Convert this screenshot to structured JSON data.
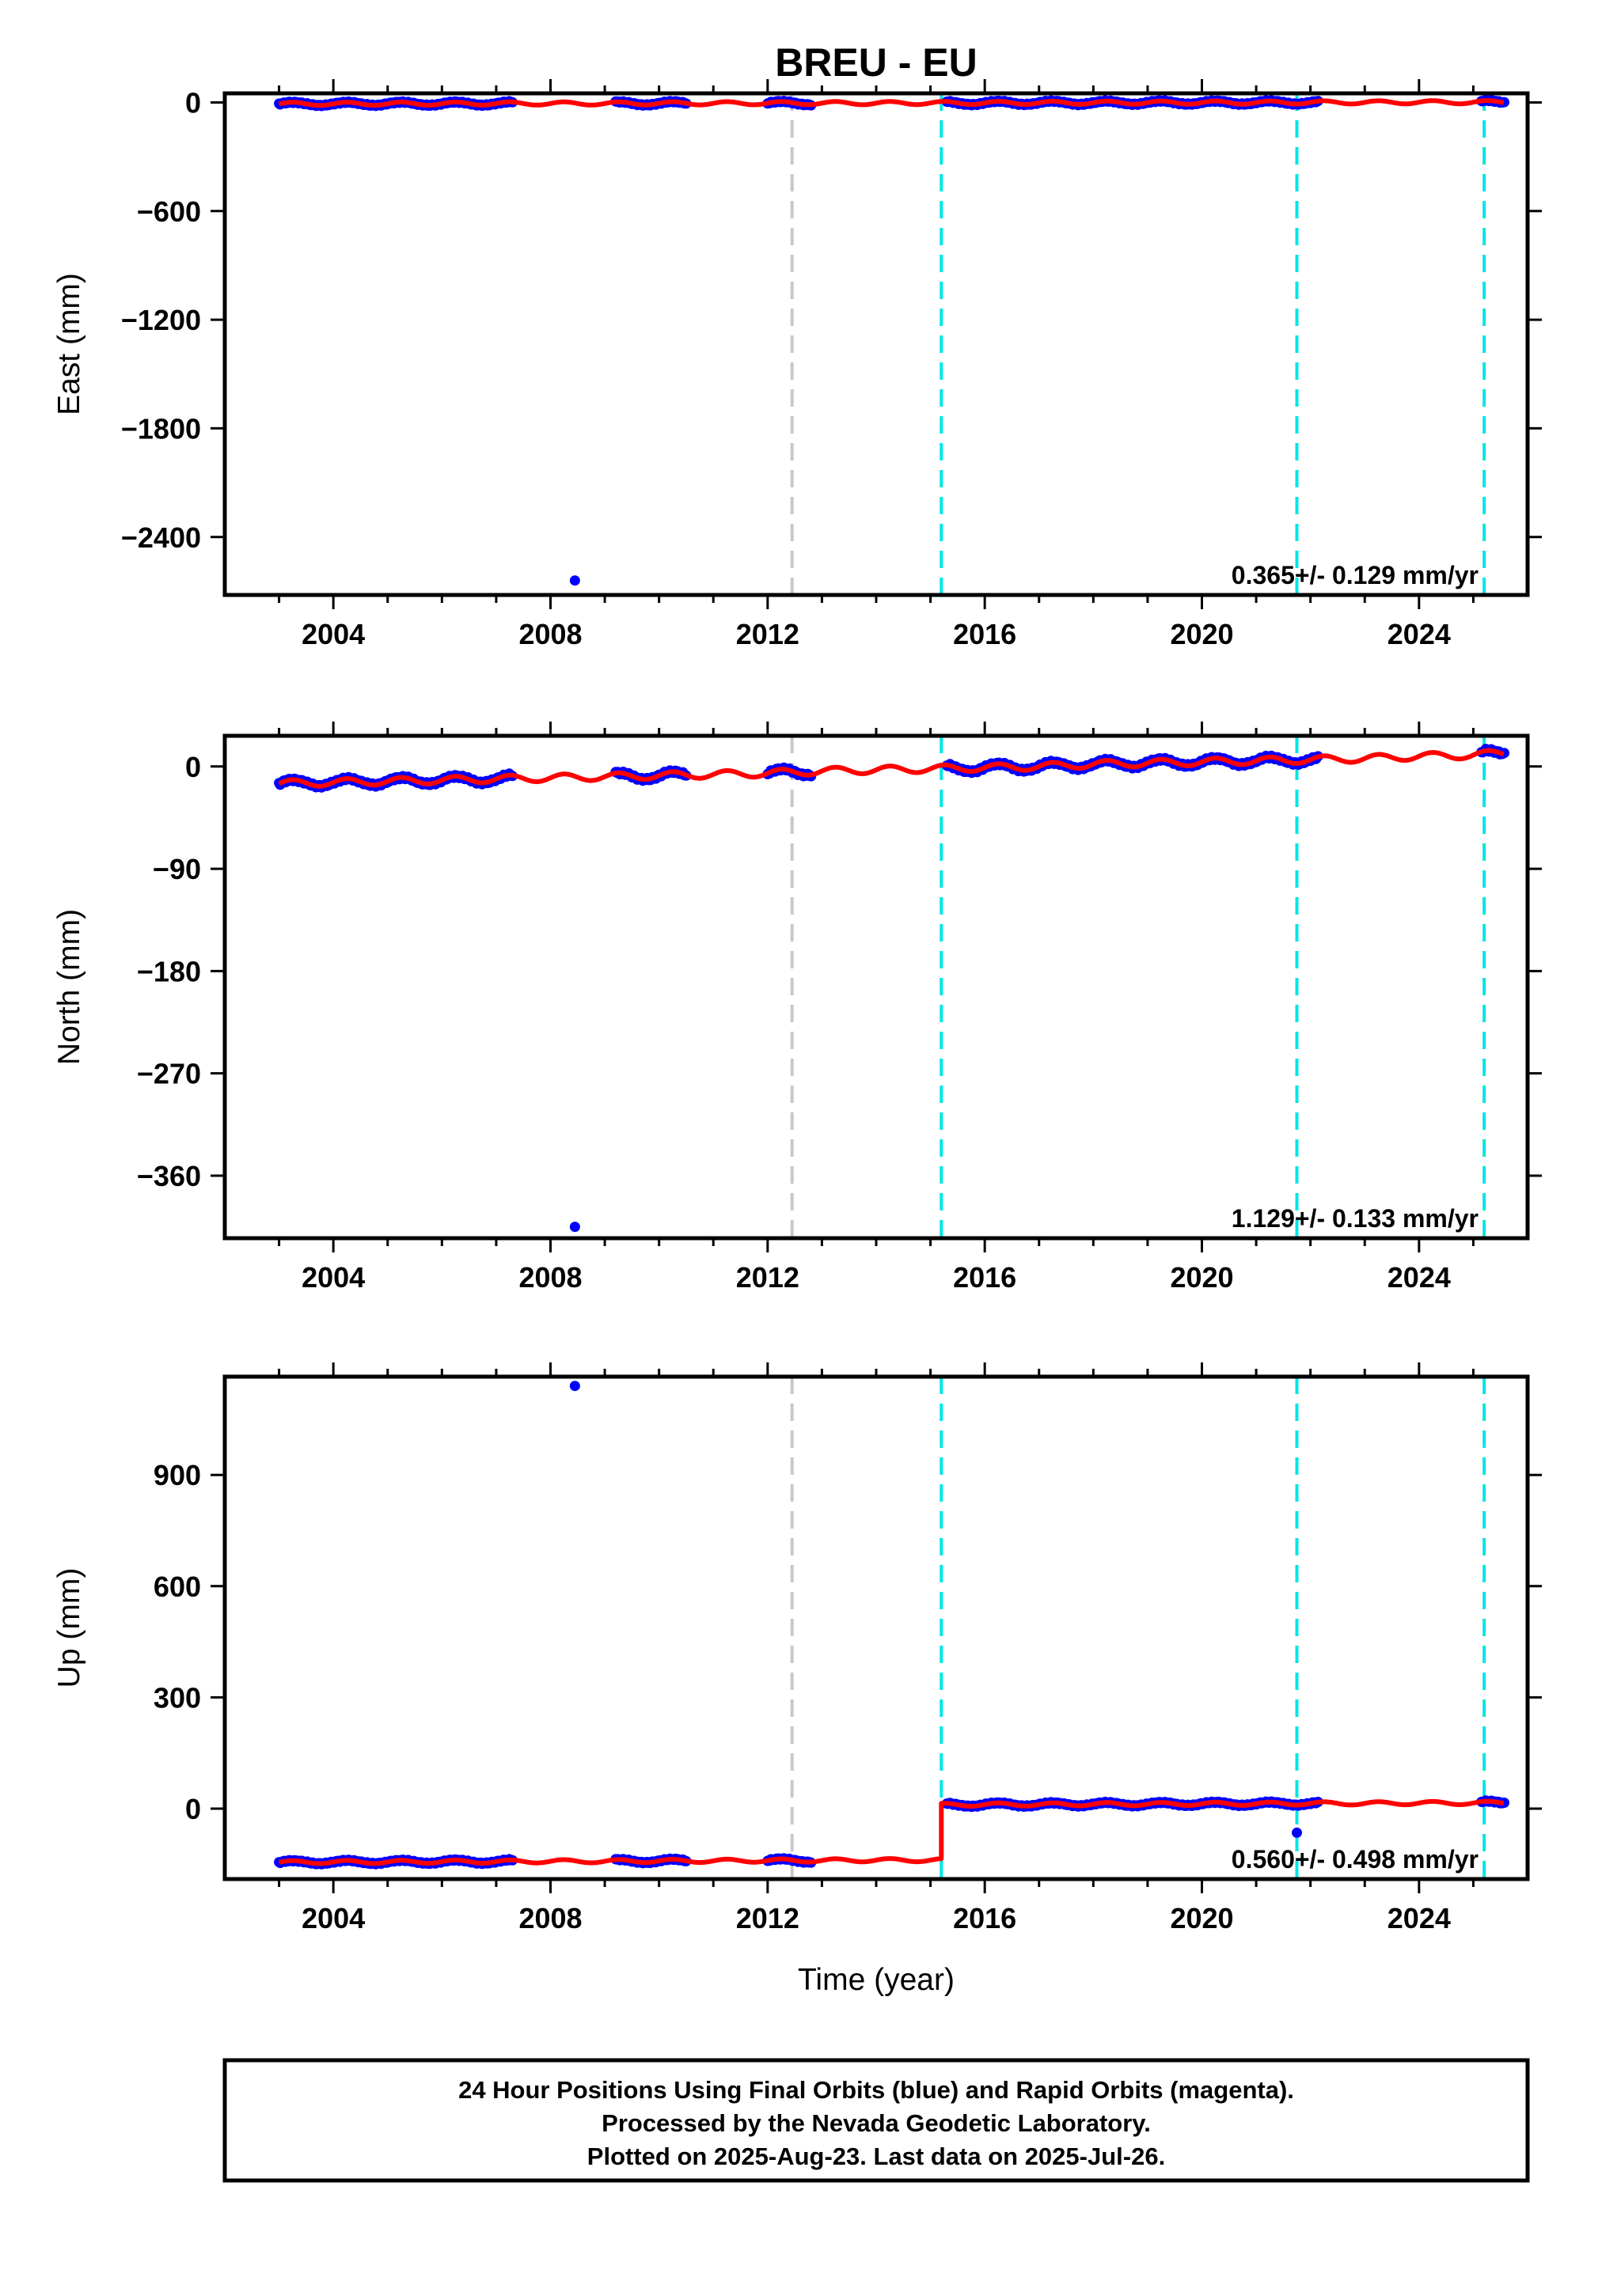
{
  "chart_data": [
    {
      "type": "scatter",
      "title": "BREU - EU",
      "xlabel": "",
      "ylabel": "East (mm)",
      "xlim": [
        2002.0,
        2026.0
      ],
      "ylim": [
        -2720,
        50
      ],
      "xticks": [
        2004,
        2008,
        2012,
        2016,
        2020,
        2024
      ],
      "xtick_labels": [
        "2004",
        "2008",
        "2012",
        "2016",
        "2020",
        "2024"
      ],
      "yticks": [
        0,
        -600,
        -1200,
        -1800,
        -2400
      ],
      "ytick_labels": [
        "0",
        "−600",
        "−1200",
        "−1800",
        "−2400"
      ],
      "rate_text": "0.365+/- 0.129 mm/yr",
      "grid": false,
      "data_segments": [
        [
          2003.0,
          2007.3
        ],
        [
          2009.2,
          2010.5
        ],
        [
          2012.0,
          2012.8
        ],
        [
          2015.3,
          2022.15
        ],
        [
          2025.15,
          2025.57
        ]
      ],
      "series": [
        {
          "color": "#ff0000",
          "x": [
            2003.0,
            2004.0,
            2005.0,
            2006.0,
            2007.0,
            2008.0,
            2009.0,
            2010.0,
            2011.0,
            2012.0,
            2013.0,
            2014.0,
            2015.0,
            2016.0,
            2017.0,
            2018.0,
            2019.0,
            2020.0,
            2021.0,
            2022.0,
            2023.0,
            2024.0,
            2025.0,
            2025.57
          ],
          "y": [
            -8,
            -8,
            -7,
            -7,
            -6,
            -6,
            -6,
            -5,
            -5,
            -4,
            -4,
            -4,
            -3,
            -3,
            -2,
            -2,
            -1,
            -1,
            -1,
            0,
            0,
            1,
            1,
            2
          ]
        }
      ],
      "outliers": [
        {
          "x": 2008.45,
          "y": -2640
        }
      ],
      "breaks": [
        {
          "x": 2012.45,
          "color": "#c8c8c8"
        },
        {
          "x": 2015.2,
          "color": "#00e6e6"
        },
        {
          "x": 2021.75,
          "color": "#00e6e6"
        },
        {
          "x": 2025.2,
          "color": "#00e6e6"
        }
      ]
    },
    {
      "type": "scatter",
      "title": "",
      "xlabel": "",
      "ylabel": "North (mm)",
      "xlim": [
        2002.0,
        2026.0
      ],
      "ylim": [
        -415,
        27
      ],
      "xticks": [
        2004,
        2008,
        2012,
        2016,
        2020,
        2024
      ],
      "xtick_labels": [
        "2004",
        "2008",
        "2012",
        "2016",
        "2020",
        "2024"
      ],
      "yticks": [
        0,
        -90,
        -180,
        -270,
        -360
      ],
      "ytick_labels": [
        "0",
        "−90",
        "−180",
        "−270",
        "−360"
      ],
      "rate_text": "1.129+/- 0.133 mm/yr",
      "grid": false,
      "data_segments": [
        [
          2003.0,
          2007.3
        ],
        [
          2009.2,
          2010.5
        ],
        [
          2012.0,
          2012.8
        ],
        [
          2015.3,
          2022.15
        ],
        [
          2025.15,
          2025.57
        ]
      ],
      "series": [
        {
          "color": "#ff0000",
          "x": [
            2003.0,
            2004.0,
            2005.0,
            2006.0,
            2007.0,
            2008.0,
            2009.0,
            2010.0,
            2011.0,
            2012.0,
            2013.0,
            2014.0,
            2015.0,
            2016.0,
            2017.0,
            2018.0,
            2019.0,
            2020.0,
            2021.0,
            2022.0,
            2023.0,
            2024.0,
            2025.0,
            2025.57
          ],
          "y": [
            -15,
            -14,
            -13,
            -12,
            -11,
            -10,
            -9,
            -8,
            -7,
            -6,
            -4,
            -3,
            -2,
            -1,
            0,
            2,
            3,
            4,
            5,
            6,
            7,
            9,
            10,
            12
          ]
        }
      ],
      "outliers": [
        {
          "x": 2008.45,
          "y": -405
        }
      ],
      "breaks": [
        {
          "x": 2012.45,
          "color": "#c8c8c8"
        },
        {
          "x": 2015.2,
          "color": "#00e6e6"
        },
        {
          "x": 2021.75,
          "color": "#00e6e6"
        },
        {
          "x": 2025.2,
          "color": "#00e6e6"
        }
      ]
    },
    {
      "type": "scatter",
      "title": "",
      "xlabel": "Time (year)",
      "ylabel": "Up (mm)",
      "xlim": [
        2002.0,
        2026.0
      ],
      "ylim": [
        -190,
        1165
      ],
      "xticks": [
        2004,
        2008,
        2012,
        2016,
        2020,
        2024
      ],
      "xtick_labels": [
        "2004",
        "2008",
        "2012",
        "2016",
        "2020",
        "2024"
      ],
      "yticks": [
        900,
        600,
        300,
        0
      ],
      "ytick_labels": [
        "900",
        "600",
        "300",
        "0"
      ],
      "rate_text": "0.560+/- 0.498 mm/yr",
      "grid": false,
      "data_segments": [
        [
          2003.0,
          2007.3
        ],
        [
          2009.2,
          2010.5
        ],
        [
          2012.0,
          2012.8
        ],
        [
          2015.3,
          2022.15
        ],
        [
          2025.15,
          2025.57
        ]
      ],
      "series": [
        {
          "color": "#ff0000",
          "x": [
            2003.0,
            2004.0,
            2005.0,
            2006.0,
            2007.0,
            2008.0,
            2009.0,
            2010.0,
            2011.0,
            2012.0,
            2013.0,
            2014.0,
            2015.0,
            2015.2,
            2015.2,
            2016.0,
            2017.0,
            2018.0,
            2019.0,
            2020.0,
            2021.0,
            2022.0,
            2023.0,
            2024.0,
            2025.0,
            2025.57
          ],
          "y": [
            -145,
            -144,
            -144,
            -143,
            -143,
            -142,
            -142,
            -141,
            -141,
            -140,
            -140,
            -139,
            -139,
            -139,
            10,
            11,
            11,
            12,
            12,
            13,
            13,
            14,
            14,
            15,
            15,
            16
          ]
        }
      ],
      "outliers": [
        {
          "x": 2008.45,
          "y": 1140
        },
        {
          "x": 2021.75,
          "y": -65
        }
      ],
      "breaks": [
        {
          "x": 2012.45,
          "color": "#c8c8c8"
        },
        {
          "x": 2015.2,
          "color": "#00e6e6"
        },
        {
          "x": 2021.75,
          "color": "#00e6e6"
        },
        {
          "x": 2025.2,
          "color": "#00e6e6"
        }
      ]
    }
  ],
  "caption": {
    "line1": "24 Hour Positions Using Final Orbits (blue) and Rapid Orbits (magenta).",
    "line2": "Processed by the Nevada Geodetic Laboratory.",
    "line3": "Plotted on 2025-Aug-23. Last data on 2025-Jul-26."
  },
  "colors": {
    "final_orbits": "#0000ff",
    "model_fit": "#ff0000",
    "break_equipment": "#00e6e6",
    "break_other": "#c8c8c8"
  }
}
